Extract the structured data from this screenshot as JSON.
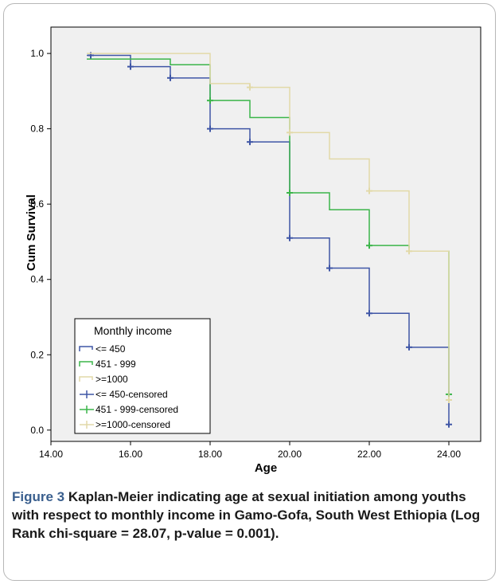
{
  "caption": {
    "lead": "Figure 3",
    "text": " Kaplan-Meier indicating age at sexual initiation among youths with respect to monthly income in Gamo-Gofa, South West Ethiopia (Log Rank chi-square = 28.07, p-value = 0.001)."
  },
  "chart_data": {
    "type": "line",
    "title": "",
    "xlabel": "Age",
    "ylabel": "Cum Survival",
    "xlim": [
      14,
      24.8
    ],
    "ylim": [
      -0.03,
      1.07
    ],
    "x_ticks": [
      14,
      16,
      18,
      20,
      22,
      24
    ],
    "x_tick_labels": [
      "14.00",
      "16.00",
      "18.00",
      "20.00",
      "22.00",
      "24.00"
    ],
    "y_ticks": [
      0.0,
      0.2,
      0.4,
      0.6,
      0.8,
      1.0
    ],
    "y_tick_labels": [
      "0.0",
      "0.2",
      "0.4",
      "0.6",
      "0.8",
      "1.0"
    ],
    "grid": false,
    "plot_background": "#f0f0f0",
    "legend": {
      "title": "Monthly income",
      "position": "bottom-left",
      "entries": [
        "<= 450",
        "451 - 999",
        ">=1000",
        "<= 450-censored",
        "451 - 999-censored",
        ">=1000-censored"
      ]
    },
    "series": [
      {
        "name": "<= 450",
        "color": "#3f56a6",
        "step_x": [
          14.9,
          16,
          17,
          18,
          19,
          20,
          21,
          22,
          23,
          24
        ],
        "step_y": [
          0.995,
          0.965,
          0.935,
          0.8,
          0.765,
          0.51,
          0.43,
          0.31,
          0.22,
          0.015
        ],
        "censored": [
          [
            15,
            0.995
          ],
          [
            16,
            0.965
          ],
          [
            17,
            0.935
          ],
          [
            18,
            0.8
          ],
          [
            19,
            0.765
          ],
          [
            20,
            0.51
          ],
          [
            21,
            0.43
          ],
          [
            22,
            0.31
          ],
          [
            23,
            0.22
          ],
          [
            24,
            0.015
          ]
        ]
      },
      {
        "name": "451 - 999",
        "color": "#3bb54a",
        "step_x": [
          14.9,
          17,
          18,
          19,
          20,
          21,
          22,
          23,
          24
        ],
        "step_y": [
          0.985,
          0.97,
          0.875,
          0.83,
          0.63,
          0.585,
          0.49,
          0.475,
          0.095
        ],
        "censored": [
          [
            18,
            0.875
          ],
          [
            20,
            0.63
          ],
          [
            22,
            0.49
          ],
          [
            24,
            0.095
          ]
        ]
      },
      {
        "name": ">=1000",
        "color": "#e2d9a8",
        "step_x": [
          14.9,
          18,
          19,
          20,
          21,
          22,
          23,
          24
        ],
        "step_y": [
          1.0,
          0.92,
          0.91,
          0.79,
          0.72,
          0.635,
          0.475,
          0.08
        ],
        "censored": [
          [
            19,
            0.91
          ],
          [
            20,
            0.79
          ],
          [
            22,
            0.635
          ],
          [
            23,
            0.475
          ],
          [
            24,
            0.08
          ]
        ]
      }
    ],
    "censor_colors": [
      "#3f56a6",
      "#3bb54a",
      "#e2d9a8"
    ]
  }
}
